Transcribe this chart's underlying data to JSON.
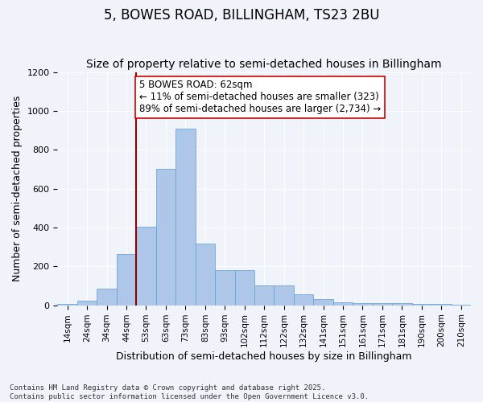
{
  "title": "5, BOWES ROAD, BILLINGHAM, TS23 2BU",
  "subtitle": "Size of property relative to semi-detached houses in Billingham",
  "xlabel": "Distribution of semi-detached houses by size in Billingham",
  "ylabel": "Number of semi-detached properties",
  "bins": [
    "14sqm",
    "24sqm",
    "34sqm",
    "44sqm",
    "53sqm",
    "63sqm",
    "73sqm",
    "83sqm",
    "93sqm",
    "102sqm",
    "112sqm",
    "122sqm",
    "132sqm",
    "141sqm",
    "151sqm",
    "161sqm",
    "171sqm",
    "181sqm",
    "190sqm",
    "200sqm",
    "210sqm"
  ],
  "values": [
    5,
    25,
    85,
    265,
    405,
    700,
    910,
    315,
    180,
    180,
    100,
    100,
    55,
    30,
    15,
    12,
    10,
    10,
    8,
    5,
    2
  ],
  "bar_color": "#aec6e8",
  "bar_edge_color": "#5a9fd4",
  "vline_x_index": 4,
  "vline_color": "#8b0000",
  "annotation_text": "5 BOWES ROAD: 62sqm\n← 11% of semi-detached houses are smaller (323)\n89% of semi-detached houses are larger (2,734) →",
  "annotation_box_color": "#ffffff",
  "annotation_box_edge": "#cc0000",
  "annotation_fontsize": 8.5,
  "ylim": [
    0,
    1200
  ],
  "yticks": [
    0,
    200,
    400,
    600,
    800,
    1000,
    1200
  ],
  "background_color": "#f0f4fa",
  "footer_text": "Contains HM Land Registry data © Crown copyright and database right 2025.\nContains public sector information licensed under the Open Government Licence v3.0.",
  "title_fontsize": 12,
  "subtitle_fontsize": 10,
  "xlabel_fontsize": 9,
  "ylabel_fontsize": 9,
  "tick_fontsize": 7.5,
  "ytick_fontsize": 8
}
